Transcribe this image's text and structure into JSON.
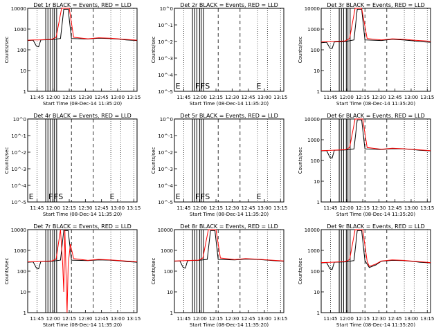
{
  "colors": {
    "events": "#000000",
    "lld": "#ff0000",
    "background": "#ffffff"
  },
  "chart_data": [
    {
      "type": "line",
      "title": "Det 1r BLACK = Events, RED = LLD",
      "xlabel": "Start Time (08-Dec-14 11:35:20)",
      "ylabel": "Counts/sec",
      "scale": "log",
      "yticks": [
        "1",
        "10",
        "100",
        "1000",
        "10000"
      ],
      "xticks": [
        "11:45",
        "12:00",
        "12:15",
        "12:30",
        "12:45",
        "13:00",
        "13:15"
      ],
      "has_data": true,
      "markers": [],
      "series": [
        {
          "name": "Events",
          "values": [
            [
              0,
              280
            ],
            [
              5,
              290
            ],
            [
              8,
              150
            ],
            [
              10,
              140
            ],
            [
              12,
              300
            ],
            [
              22,
              310
            ],
            [
              30,
              350
            ],
            [
              33,
              9000
            ],
            [
              37,
              9000
            ],
            [
              40,
              350
            ],
            [
              55,
              330
            ],
            [
              65,
              360
            ],
            [
              75,
              350
            ],
            [
              85,
              320
            ],
            [
              90,
              300
            ],
            [
              100,
              280
            ]
          ]
        },
        {
          "name": "LLD",
          "values": [
            [
              0,
              290
            ],
            [
              5,
              300
            ],
            [
              10,
              300
            ],
            [
              22,
              320
            ],
            [
              26,
              400
            ],
            [
              31,
              15000
            ],
            [
              38,
              15000
            ],
            [
              42,
              400
            ],
            [
              55,
              340
            ],
            [
              65,
              380
            ],
            [
              75,
              360
            ],
            [
              85,
              330
            ],
            [
              100,
              290
            ]
          ]
        }
      ]
    },
    {
      "type": "line",
      "title": "Det 2r BLACK = Events, RED = LLD",
      "xlabel": "Start Time (08-Dec-14 11:35:20)",
      "ylabel": "Counts/sec",
      "scale": "sci",
      "yticks": [
        "10^0",
        "10^-1",
        "10^-2",
        "10^-3",
        "10^-4",
        "10^-5"
      ],
      "xticks": [
        "11:45",
        "12:00",
        "12:15",
        "12:30",
        "12:45",
        "13:00",
        "13:15"
      ],
      "has_data": false,
      "markers": [
        "E",
        "F",
        "F",
        "S",
        "E"
      ],
      "series": []
    },
    {
      "type": "line",
      "title": "Det 3r BLACK = Events, RED = LLD",
      "xlabel": "Start Time (08-Dec-14 11:35:20)",
      "ylabel": "Counts/sec",
      "scale": "log",
      "yticks": [
        "1",
        "10",
        "100",
        "1000",
        "10000"
      ],
      "xticks": [
        "11:45",
        "12:00",
        "12:15",
        "12:30",
        "12:45",
        "13:00",
        "13:15"
      ],
      "has_data": true,
      "markers": [],
      "series": [
        {
          "name": "Events",
          "values": [
            [
              0,
              220
            ],
            [
              5,
              230
            ],
            [
              8,
              120
            ],
            [
              10,
              115
            ],
            [
              12,
              240
            ],
            [
              22,
              250
            ],
            [
              30,
              300
            ],
            [
              33,
              9000
            ],
            [
              37,
              9000
            ],
            [
              40,
              300
            ],
            [
              55,
              280
            ],
            [
              65,
              320
            ],
            [
              75,
              300
            ],
            [
              85,
              270
            ],
            [
              90,
              250
            ],
            [
              100,
              230
            ]
          ]
        },
        {
          "name": "LLD",
          "values": [
            [
              0,
              240
            ],
            [
              10,
              250
            ],
            [
              22,
              270
            ],
            [
              26,
              350
            ],
            [
              31,
              14000
            ],
            [
              37,
              14000
            ],
            [
              42,
              350
            ],
            [
              55,
              300
            ],
            [
              65,
              340
            ],
            [
              75,
              320
            ],
            [
              85,
              290
            ],
            [
              100,
              260
            ]
          ]
        }
      ]
    },
    {
      "type": "line",
      "title": "Det 4r BLACK = Events, RED = LLD",
      "xlabel": "Start Time (08-Dec-14 11:35:20)",
      "ylabel": "Counts/sec",
      "scale": "sci",
      "yticks": [
        "10^0",
        "10^-1",
        "10^-2",
        "10^-3",
        "10^-4",
        "10^-5"
      ],
      "xticks": [
        "11:45",
        "12:00",
        "12:15",
        "12:30",
        "12:45",
        "13:00",
        "13:15"
      ],
      "has_data": false,
      "markers": [
        "E",
        "F",
        "F",
        "S",
        "E"
      ],
      "series": []
    },
    {
      "type": "line",
      "title": "Det 5r BLACK = Events, RED = LLD",
      "xlabel": "Start Time (08-Dec-14 11:35:20)",
      "ylabel": "Counts/sec",
      "scale": "sci",
      "yticks": [
        "10^0",
        "10^-1",
        "10^-2",
        "10^-3",
        "10^-4",
        "10^-5"
      ],
      "xticks": [
        "11:45",
        "12:00",
        "12:15",
        "12:30",
        "12:45",
        "13:00",
        "13:15"
      ],
      "has_data": false,
      "markers": [
        "E",
        "F",
        "F",
        "S",
        "E"
      ],
      "series": []
    },
    {
      "type": "line",
      "title": "Det 6r BLACK = Events, RED = LLD",
      "xlabel": "Start Time (08-Dec-14 11:35:20)",
      "ylabel": "Counts/sec",
      "scale": "log",
      "yticks": [
        "1",
        "10",
        "100",
        "1000",
        "10000"
      ],
      "xticks": [
        "11:45",
        "12:00",
        "12:15",
        "12:30",
        "12:45",
        "13:00",
        "13:15"
      ],
      "has_data": true,
      "markers": [],
      "series": [
        {
          "name": "Events",
          "values": [
            [
              0,
              290
            ],
            [
              5,
              300
            ],
            [
              8,
              140
            ],
            [
              10,
              130
            ],
            [
              12,
              310
            ],
            [
              22,
              320
            ],
            [
              30,
              360
            ],
            [
              33,
              9000
            ],
            [
              37,
              9000
            ],
            [
              40,
              360
            ],
            [
              55,
              340
            ],
            [
              65,
              370
            ],
            [
              75,
              360
            ],
            [
              85,
              330
            ],
            [
              90,
              310
            ],
            [
              100,
              290
            ]
          ]
        },
        {
          "name": "LLD",
          "values": [
            [
              0,
              300
            ],
            [
              10,
              310
            ],
            [
              22,
              330
            ],
            [
              26,
              420
            ],
            [
              31,
              16000
            ],
            [
              38,
              16000
            ],
            [
              42,
              420
            ],
            [
              55,
              350
            ],
            [
              65,
              390
            ],
            [
              75,
              370
            ],
            [
              85,
              340
            ],
            [
              100,
              300
            ]
          ]
        }
      ]
    },
    {
      "type": "line",
      "title": "Det 7r BLACK = Events, RED = LLD",
      "xlabel": "Start Time (08-Dec-14 11:35:20)",
      "ylabel": "Counts/sec",
      "scale": "log",
      "yticks": [
        "1",
        "10",
        "100",
        "1000",
        "10000"
      ],
      "xticks": [
        "11:45",
        "12:00",
        "12:15",
        "12:30",
        "12:45",
        "13:00",
        "13:15"
      ],
      "has_data": true,
      "markers": [],
      "series": [
        {
          "name": "Events",
          "values": [
            [
              0,
              270
            ],
            [
              5,
              280
            ],
            [
              8,
              140
            ],
            [
              10,
              130
            ],
            [
              12,
              290
            ],
            [
              22,
              300
            ],
            [
              30,
              340
            ],
            [
              33,
              9000
            ],
            [
              37,
              9000
            ],
            [
              40,
              340
            ],
            [
              55,
              320
            ],
            [
              65,
              350
            ],
            [
              75,
              340
            ],
            [
              85,
              310
            ],
            [
              90,
              290
            ],
            [
              100,
              270
            ]
          ]
        },
        {
          "name": "LLD",
          "values": [
            [
              0,
              280
            ],
            [
              10,
              290
            ],
            [
              22,
              310
            ],
            [
              26,
              380
            ],
            [
              30,
              14000
            ],
            [
              32,
              200
            ],
            [
              33,
              10
            ],
            [
              34,
              14000
            ],
            [
              36,
              1
            ],
            [
              37,
              200
            ],
            [
              39,
              2000
            ],
            [
              42,
              400
            ],
            [
              55,
              330
            ],
            [
              65,
              370
            ],
            [
              75,
              350
            ],
            [
              85,
              320
            ],
            [
              100,
              280
            ]
          ]
        }
      ]
    },
    {
      "type": "line",
      "title": "Det 8r BLACK = Events, RED = LLD",
      "xlabel": "Start Time (08-Dec-14 11:35:20)",
      "ylabel": "Counts/sec",
      "scale": "log",
      "yticks": [
        "1",
        "10",
        "100",
        "1000",
        "10000"
      ],
      "xticks": [
        "11:45",
        "12:00",
        "12:15",
        "12:30",
        "12:45",
        "13:00",
        "13:15"
      ],
      "has_data": true,
      "markers": [],
      "series": [
        {
          "name": "Events",
          "values": [
            [
              0,
              300
            ],
            [
              5,
              310
            ],
            [
              8,
              150
            ],
            [
              10,
              140
            ],
            [
              12,
              320
            ],
            [
              22,
              330
            ],
            [
              30,
              370
            ],
            [
              33,
              9000
            ],
            [
              37,
              9000
            ],
            [
              40,
              370
            ],
            [
              55,
              350
            ],
            [
              65,
              380
            ],
            [
              75,
              370
            ],
            [
              85,
              340
            ],
            [
              90,
              320
            ],
            [
              100,
              300
            ]
          ]
        },
        {
          "name": "LLD",
          "values": [
            [
              0,
              310
            ],
            [
              10,
              320
            ],
            [
              22,
              340
            ],
            [
              26,
              430
            ],
            [
              31,
              16000
            ],
            [
              38,
              16000
            ],
            [
              42,
              430
            ],
            [
              55,
              360
            ],
            [
              65,
              400
            ],
            [
              75,
              380
            ],
            [
              85,
              350
            ],
            [
              100,
              310
            ]
          ]
        }
      ]
    },
    {
      "type": "line",
      "title": "Det 9r BLACK = Events, RED = LLD",
      "xlabel": "Start Time (08-Dec-14 11:35:20)",
      "ylabel": "Counts/sec",
      "scale": "log",
      "yticks": [
        "1",
        "10",
        "100",
        "1000",
        "10000"
      ],
      "xticks": [
        "11:45",
        "12:00",
        "12:15",
        "12:30",
        "12:45",
        "13:00",
        "13:15"
      ],
      "has_data": true,
      "markers": [],
      "series": [
        {
          "name": "Events",
          "values": [
            [
              0,
              250
            ],
            [
              5,
              260
            ],
            [
              8,
              130
            ],
            [
              10,
              120
            ],
            [
              12,
              270
            ],
            [
              22,
              280
            ],
            [
              30,
              320
            ],
            [
              33,
              9000
            ],
            [
              37,
              9000
            ],
            [
              40,
              320
            ],
            [
              44,
              150
            ],
            [
              50,
              200
            ],
            [
              55,
              300
            ],
            [
              65,
              330
            ],
            [
              75,
              320
            ],
            [
              85,
              290
            ],
            [
              90,
              270
            ],
            [
              100,
              250
            ]
          ]
        },
        {
          "name": "LLD",
          "values": [
            [
              0,
              260
            ],
            [
              10,
              270
            ],
            [
              22,
              290
            ],
            [
              26,
              360
            ],
            [
              31,
              14000
            ],
            [
              38,
              14000
            ],
            [
              42,
              300
            ],
            [
              44,
              170
            ],
            [
              50,
              220
            ],
            [
              55,
              310
            ],
            [
              65,
              350
            ],
            [
              75,
              330
            ],
            [
              85,
              300
            ],
            [
              100,
              260
            ]
          ]
        }
      ]
    }
  ]
}
